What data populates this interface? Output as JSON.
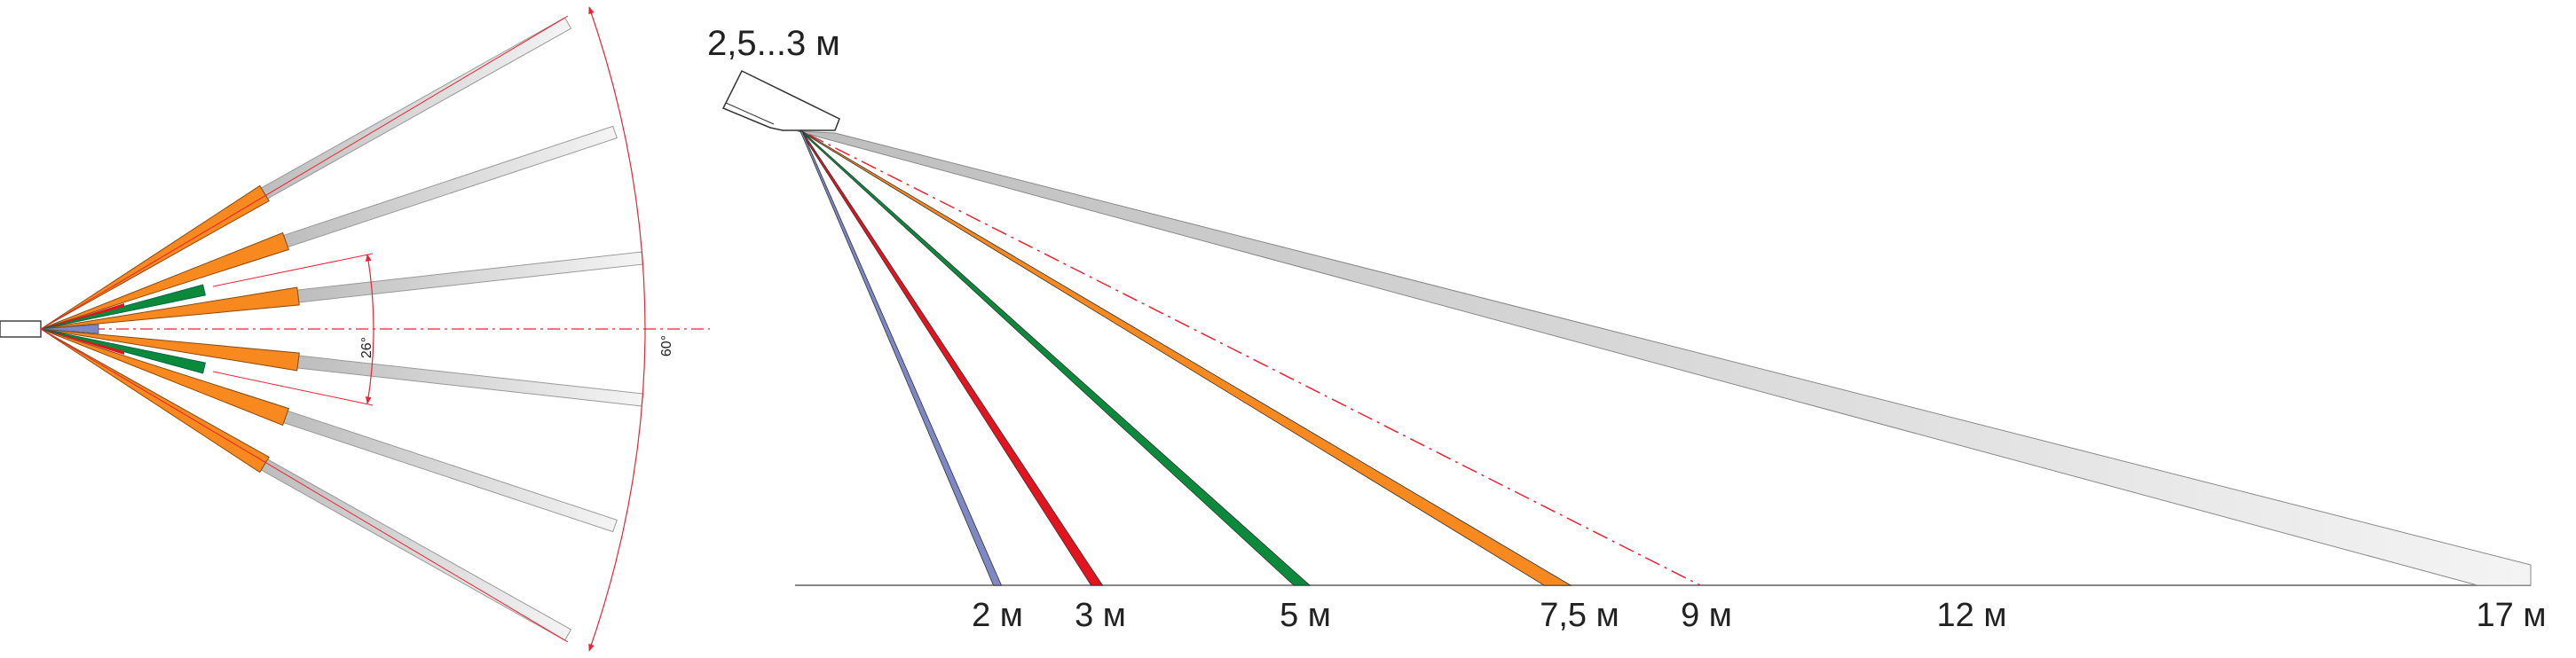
{
  "top_view": {
    "angle_inner_label": "26°",
    "angle_outer_label": "60°"
  },
  "side_view": {
    "height_label": "2,5...3 м",
    "distance_labels": [
      "2 м",
      "3 м",
      "5 м",
      "7,5 м",
      "9 м",
      "12 м",
      "17 м"
    ]
  },
  "colors": {
    "orange": "#f7891f",
    "green": "#0b8a3c",
    "red": "#e3141f",
    "blue": "#7d88c4",
    "gray": "#c9c9c9",
    "dim_red": "#ee2233"
  }
}
